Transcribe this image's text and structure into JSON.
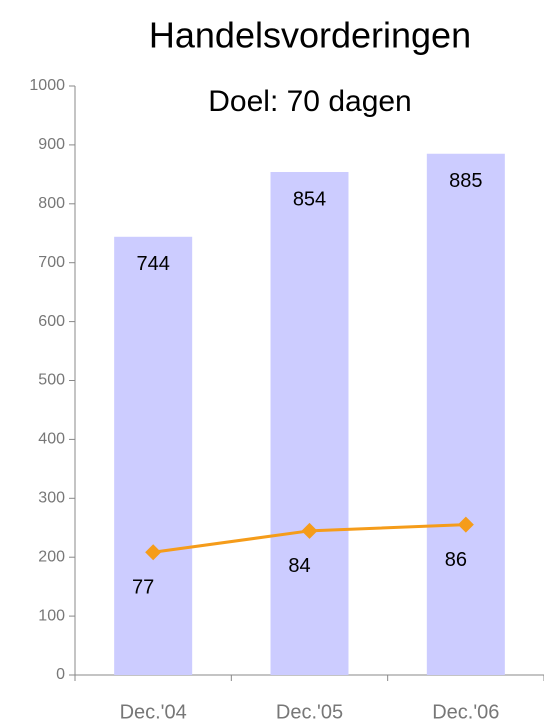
{
  "chart_data": {
    "type": "bar",
    "title": "Handelsvorderingen",
    "subtitle": "Doel: 70 dagen",
    "categories": [
      "Dec.'04",
      "Dec.'05",
      "Dec.'06"
    ],
    "series": [
      {
        "type": "bar",
        "color": "#ccccff",
        "values": [
          744,
          854,
          885
        ]
      },
      {
        "type": "line",
        "color": "#f59c1a",
        "axis": "y2",
        "values": [
          77,
          84,
          86
        ]
      }
    ],
    "ylim": [
      0,
      1000
    ],
    "yticks": [
      0,
      100,
      200,
      300,
      400,
      500,
      600,
      700,
      800,
      900,
      1000
    ],
    "y2lim": [
      37,
      229
    ],
    "grid": false
  }
}
